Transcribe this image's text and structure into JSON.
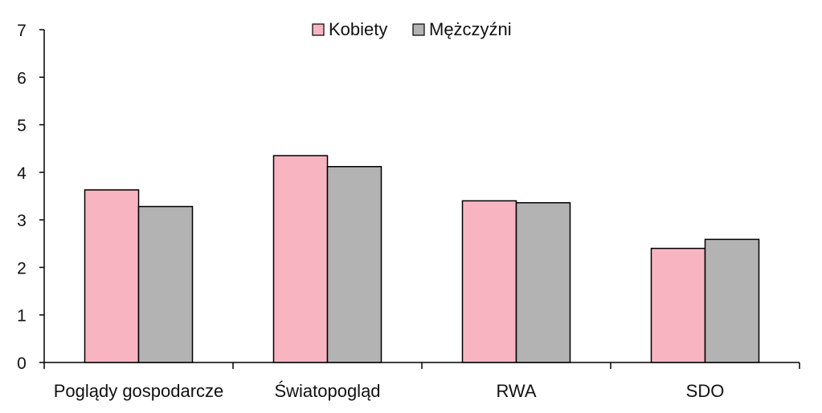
{
  "chart_data": {
    "type": "bar",
    "title": "",
    "xlabel": "",
    "ylabel": "",
    "ylim": [
      0,
      7
    ],
    "yticks": [
      0,
      1,
      2,
      3,
      4,
      5,
      6,
      7
    ],
    "grid": false,
    "legend_position": "top-center",
    "categories": [
      "Poglądy gospodarcze",
      "Światopogląd",
      "RWA",
      "SDO"
    ],
    "series": [
      {
        "name": "Kobiety",
        "color": "#f8b5c1",
        "values": [
          3.63,
          4.35,
          3.4,
          2.4
        ]
      },
      {
        "name": "Mężczyźni",
        "color": "#b3b3b3",
        "values": [
          3.28,
          4.12,
          3.36,
          2.59
        ]
      }
    ]
  }
}
